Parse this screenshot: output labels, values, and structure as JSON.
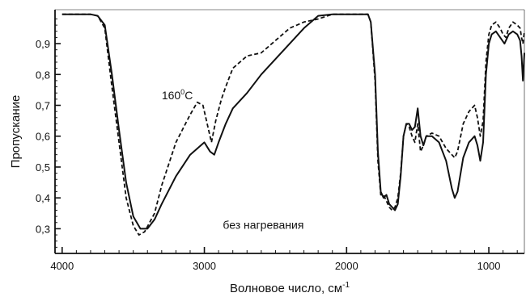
{
  "chart_data": {
    "type": "line",
    "title": "",
    "xlabel": "Волновое число, см",
    "xlabel_superscript": "-1",
    "ylabel": "Пропускание",
    "xlim": [
      4050,
      750
    ],
    "ylim": [
      0.22,
      1.01
    ],
    "x_reversed": true,
    "x_ticks": [
      4000,
      3000,
      2000,
      1000
    ],
    "y_ticks": [
      0.3,
      0.4,
      0.5,
      0.6,
      0.7,
      0.8,
      0.9
    ],
    "y_tick_labels": [
      "0,3",
      "0,4",
      "0,5",
      "0,6",
      "0,7",
      "0,8",
      "0,9"
    ],
    "grid": false,
    "annotations": [
      {
        "text": "160",
        "superscript": "0",
        "suffix": "C",
        "x": 3300,
        "y": 0.72
      },
      {
        "text": "без нагревания",
        "x": 2870,
        "y": 0.3
      }
    ],
    "series": [
      {
        "style": "solid",
        "color": "#111111",
        "points": [
          [
            4000,
            0.995
          ],
          [
            3900,
            0.995
          ],
          [
            3800,
            0.995
          ],
          [
            3750,
            0.99
          ],
          [
            3700,
            0.96
          ],
          [
            3650,
            0.8
          ],
          [
            3600,
            0.62
          ],
          [
            3550,
            0.45
          ],
          [
            3500,
            0.34
          ],
          [
            3450,
            0.3
          ],
          [
            3400,
            0.3
          ],
          [
            3350,
            0.33
          ],
          [
            3300,
            0.38
          ],
          [
            3200,
            0.47
          ],
          [
            3100,
            0.54
          ],
          [
            3000,
            0.58
          ],
          [
            2960,
            0.55
          ],
          [
            2930,
            0.54
          ],
          [
            2900,
            0.58
          ],
          [
            2850,
            0.64
          ],
          [
            2800,
            0.69
          ],
          [
            2700,
            0.74
          ],
          [
            2600,
            0.8
          ],
          [
            2500,
            0.85
          ],
          [
            2400,
            0.9
          ],
          [
            2300,
            0.95
          ],
          [
            2200,
            0.99
          ],
          [
            2100,
            0.995
          ],
          [
            2000,
            0.995
          ],
          [
            1900,
            0.995
          ],
          [
            1850,
            0.995
          ],
          [
            1830,
            0.97
          ],
          [
            1800,
            0.8
          ],
          [
            1780,
            0.55
          ],
          [
            1760,
            0.42
          ],
          [
            1740,
            0.4
          ],
          [
            1720,
            0.41
          ],
          [
            1700,
            0.38
          ],
          [
            1680,
            0.37
          ],
          [
            1660,
            0.36
          ],
          [
            1640,
            0.38
          ],
          [
            1620,
            0.47
          ],
          [
            1600,
            0.6
          ],
          [
            1580,
            0.64
          ],
          [
            1560,
            0.64
          ],
          [
            1540,
            0.62
          ],
          [
            1520,
            0.63
          ],
          [
            1500,
            0.69
          ],
          [
            1480,
            0.6
          ],
          [
            1460,
            0.57
          ],
          [
            1440,
            0.6
          ],
          [
            1400,
            0.6
          ],
          [
            1350,
            0.58
          ],
          [
            1300,
            0.52
          ],
          [
            1260,
            0.43
          ],
          [
            1240,
            0.4
          ],
          [
            1220,
            0.42
          ],
          [
            1180,
            0.53
          ],
          [
            1140,
            0.58
          ],
          [
            1100,
            0.6
          ],
          [
            1080,
            0.57
          ],
          [
            1060,
            0.52
          ],
          [
            1040,
            0.58
          ],
          [
            1020,
            0.8
          ],
          [
            1000,
            0.9
          ],
          [
            980,
            0.93
          ],
          [
            950,
            0.94
          ],
          [
            920,
            0.92
          ],
          [
            890,
            0.9
          ],
          [
            860,
            0.93
          ],
          [
            830,
            0.94
          ],
          [
            800,
            0.93
          ],
          [
            780,
            0.91
          ],
          [
            770,
            0.86
          ],
          [
            760,
            0.78
          ],
          [
            750,
            0.87
          ]
        ]
      },
      {
        "style": "dashed",
        "color": "#111111",
        "points": [
          [
            4000,
            0.995
          ],
          [
            3900,
            0.995
          ],
          [
            3800,
            0.995
          ],
          [
            3750,
            0.99
          ],
          [
            3700,
            0.95
          ],
          [
            3650,
            0.76
          ],
          [
            3600,
            0.58
          ],
          [
            3550,
            0.4
          ],
          [
            3500,
            0.31
          ],
          [
            3460,
            0.28
          ],
          [
            3420,
            0.29
          ],
          [
            3350,
            0.35
          ],
          [
            3300,
            0.44
          ],
          [
            3200,
            0.58
          ],
          [
            3100,
            0.67
          ],
          [
            3050,
            0.71
          ],
          [
            3010,
            0.7
          ],
          [
            2970,
            0.62
          ],
          [
            2950,
            0.58
          ],
          [
            2920,
            0.65
          ],
          [
            2880,
            0.72
          ],
          [
            2850,
            0.76
          ],
          [
            2800,
            0.82
          ],
          [
            2700,
            0.86
          ],
          [
            2600,
            0.87
          ],
          [
            2500,
            0.91
          ],
          [
            2400,
            0.95
          ],
          [
            2300,
            0.97
          ],
          [
            2200,
            0.98
          ],
          [
            2100,
            0.995
          ],
          [
            2000,
            0.995
          ],
          [
            1900,
            0.995
          ],
          [
            1850,
            0.995
          ],
          [
            1830,
            0.97
          ],
          [
            1800,
            0.78
          ],
          [
            1780,
            0.52
          ],
          [
            1760,
            0.41
          ],
          [
            1740,
            0.41
          ],
          [
            1720,
            0.39
          ],
          [
            1700,
            0.37
          ],
          [
            1680,
            0.36
          ],
          [
            1660,
            0.37
          ],
          [
            1640,
            0.4
          ],
          [
            1620,
            0.48
          ],
          [
            1600,
            0.6
          ],
          [
            1580,
            0.64
          ],
          [
            1560,
            0.63
          ],
          [
            1540,
            0.6
          ],
          [
            1520,
            0.58
          ],
          [
            1500,
            0.64
          ],
          [
            1480,
            0.55
          ],
          [
            1460,
            0.57
          ],
          [
            1440,
            0.6
          ],
          [
            1400,
            0.61
          ],
          [
            1350,
            0.6
          ],
          [
            1300,
            0.56
          ],
          [
            1260,
            0.54
          ],
          [
            1240,
            0.53
          ],
          [
            1220,
            0.55
          ],
          [
            1180,
            0.64
          ],
          [
            1140,
            0.68
          ],
          [
            1100,
            0.7
          ],
          [
            1080,
            0.66
          ],
          [
            1060,
            0.6
          ],
          [
            1040,
            0.65
          ],
          [
            1020,
            0.84
          ],
          [
            1000,
            0.93
          ],
          [
            980,
            0.96
          ],
          [
            950,
            0.97
          ],
          [
            920,
            0.95
          ],
          [
            900,
            0.93
          ],
          [
            880,
            0.92
          ],
          [
            860,
            0.95
          ],
          [
            830,
            0.97
          ],
          [
            800,
            0.96
          ],
          [
            780,
            0.95
          ],
          [
            770,
            0.92
          ],
          [
            760,
            0.9
          ],
          [
            750,
            0.94
          ]
        ]
      }
    ]
  }
}
